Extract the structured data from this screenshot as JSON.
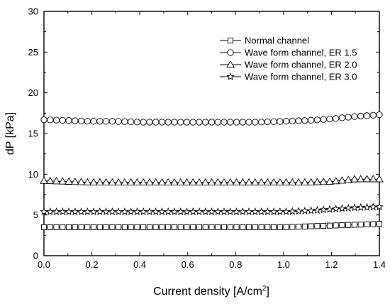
{
  "chart_data": {
    "type": "line",
    "xlabel": "Current density [A/cm",
    "xlabel_sup": "2",
    "xlabel_suffix": "]",
    "ylabel": "dP [kPa]",
    "xlim": [
      0.0,
      1.4
    ],
    "ylim": [
      0,
      30
    ],
    "xticks": [
      "0.0",
      "0.2",
      "0.4",
      "0.6",
      "0.8",
      "1.0",
      "1.2",
      "1.4"
    ],
    "yticks": [
      "0",
      "5",
      "10",
      "15",
      "20",
      "25",
      "30"
    ],
    "grid": false,
    "legend_position": "top-right",
    "x": [
      0.0,
      0.1,
      0.2,
      0.3,
      0.4,
      0.5,
      0.6,
      0.7,
      0.8,
      0.9,
      1.0,
      1.1,
      1.2,
      1.3,
      1.4
    ],
    "series": [
      {
        "name": "Normal channel",
        "marker": "square",
        "values": [
          3.5,
          3.5,
          3.5,
          3.5,
          3.5,
          3.5,
          3.5,
          3.5,
          3.5,
          3.5,
          3.5,
          3.6,
          3.7,
          3.8,
          3.9
        ]
      },
      {
        "name": "Wave form channel, ER 1.5",
        "marker": "circle",
        "values": [
          16.7,
          16.6,
          16.5,
          16.5,
          16.4,
          16.4,
          16.4,
          16.4,
          16.4,
          16.4,
          16.5,
          16.6,
          16.8,
          17.1,
          17.3
        ]
      },
      {
        "name": "Wave form channel, ER 2.0",
        "marker": "triangle",
        "values": [
          9.2,
          9.1,
          9.0,
          9.0,
          9.0,
          9.0,
          9.0,
          9.0,
          9.0,
          9.0,
          9.0,
          9.0,
          9.1,
          9.4,
          9.4
        ]
      },
      {
        "name": "Wave form channel, ER 3.0",
        "marker": "star",
        "values": [
          5.4,
          5.4,
          5.4,
          5.4,
          5.4,
          5.4,
          5.4,
          5.4,
          5.4,
          5.4,
          5.4,
          5.5,
          5.7,
          5.9,
          6.0
        ]
      }
    ]
  }
}
